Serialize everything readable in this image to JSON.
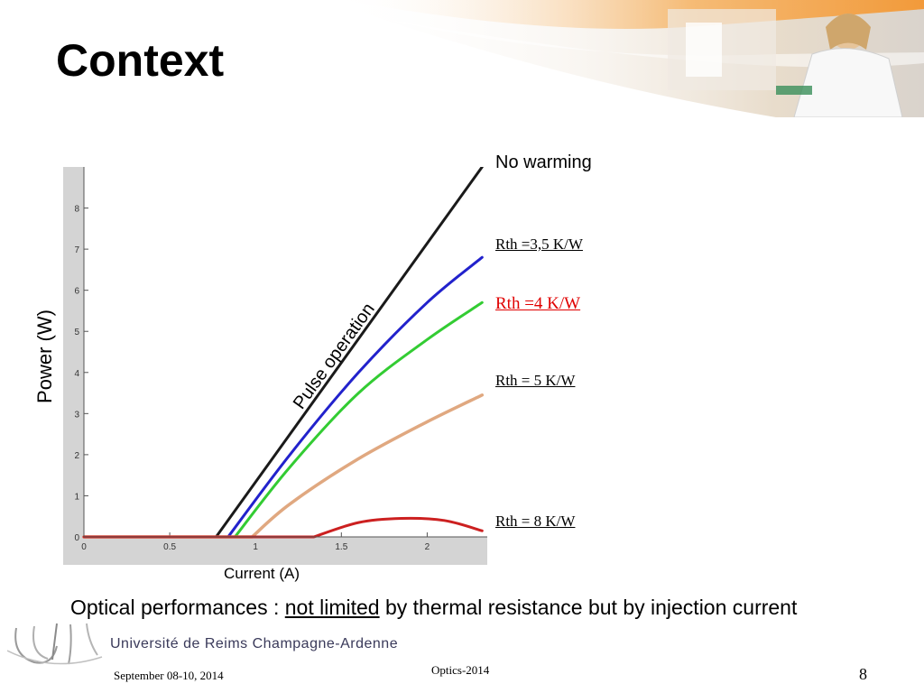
{
  "slide": {
    "title": "Context",
    "conclusion_prefix": "Optical performances : ",
    "conclusion_underlined": "not limited",
    "conclusion_suffix": " by thermal resistance but by injection current",
    "footer_date": "September 08-10, 2014",
    "footer_conference": "Optics-2014",
    "page_number": "8",
    "university_name": "Université de Reims Champagne-Ardenne"
  },
  "colors": {
    "pulse": "#1a1a1a",
    "rth_3_5": "#2222cc",
    "rth_4": "#33cc33",
    "rth_5": "#e0a880",
    "rth_8": "#cc2020",
    "plot_background": "#ffffff",
    "frame": "#d4d4d4"
  },
  "curve_labels": {
    "no_warming": "No warming",
    "rth_3_5": "Rth =3,5 K/W",
    "rth_4": "Rth =4 K/W",
    "rth_5": "Rth = 5 K/W",
    "rth_8": "Rth = 8 K/W",
    "pulse_operation": "Pulse operation"
  },
  "chart_data": {
    "type": "line",
    "xlabel": "Current (A)",
    "ylabel": "Power (W)",
    "xlim": [
      0,
      2.35
    ],
    "ylim": [
      0,
      9
    ],
    "xticks": [
      0,
      0.5,
      1,
      1.5,
      2
    ],
    "xtick_labels": [
      "0",
      "0.5",
      "1",
      "1.5",
      "2"
    ],
    "yticks": [
      0,
      1,
      2,
      3,
      4,
      5,
      6,
      7,
      8
    ],
    "ytick_labels": [
      "0",
      "1",
      "2",
      "3",
      "4",
      "5",
      "6",
      "7",
      "8"
    ],
    "grid": false,
    "series": [
      {
        "name": "No warming",
        "x": [
          0,
          0.77,
          2.32
        ],
        "y": [
          0,
          0,
          9.0
        ]
      },
      {
        "name": "Rth =3,5 K/W",
        "x": [
          0,
          0.84,
          1.2,
          1.6,
          2.0,
          2.32
        ],
        "y": [
          0,
          0,
          2.0,
          4.0,
          5.7,
          6.8
        ]
      },
      {
        "name": "Rth =4 K/W",
        "x": [
          0,
          0.88,
          1.2,
          1.6,
          2.0,
          2.32
        ],
        "y": [
          0,
          0,
          1.7,
          3.5,
          4.8,
          5.7
        ]
      },
      {
        "name": "Rth = 5 K/W",
        "x": [
          0,
          0.98,
          1.2,
          1.6,
          2.0,
          2.32
        ],
        "y": [
          0,
          0,
          0.8,
          1.9,
          2.8,
          3.45
        ]
      },
      {
        "name": "Rth = 8 K/W",
        "x": [
          0,
          1.34,
          1.6,
          1.85,
          2.1,
          2.32
        ],
        "y": [
          0,
          0,
          0.35,
          0.45,
          0.4,
          0.15
        ]
      }
    ]
  }
}
